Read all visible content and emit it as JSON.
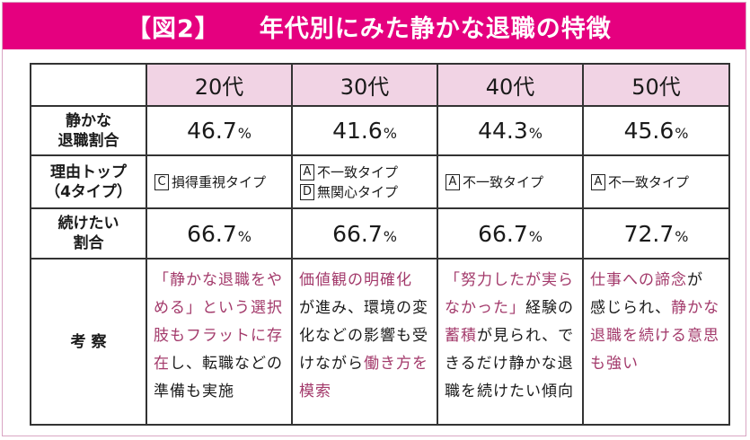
{
  "title": {
    "figure_label": "【図2】",
    "text": "年代別にみた静かな退職の特徴"
  },
  "colors": {
    "title_bg": "#e5007f",
    "header_bg": "#f1d3e4",
    "highlight_text": "#a33a6b"
  },
  "table": {
    "columns": [
      "20代",
      "30代",
      "40代",
      "50代"
    ],
    "rows": {
      "rate": {
        "label_line1": "静かな",
        "label_line2": "退職割合",
        "values": [
          "46.7",
          "41.6",
          "44.3",
          "45.6"
        ],
        "unit": "%"
      },
      "reason": {
        "label_line1": "理由トップ",
        "label_line2": "（4タイプ）",
        "cells": [
          [
            {
              "badge": "C",
              "text": "損得重視タイプ"
            }
          ],
          [
            {
              "badge": "A",
              "text": "不一致タイプ"
            },
            {
              "badge": "D",
              "text": "無関心タイプ"
            }
          ],
          [
            {
              "badge": "A",
              "text": "不一致タイプ"
            }
          ],
          [
            {
              "badge": "A",
              "text": "不一致タイプ"
            }
          ]
        ]
      },
      "continue": {
        "label_line1": "続けたい",
        "label_line2": "割合",
        "values": [
          "66.7",
          "66.7",
          "66.7",
          "72.7"
        ],
        "unit": "%"
      },
      "consideration": {
        "label": "考 察",
        "texts": [
          {
            "l1": "「静かな退職をや",
            "l2": "める」という選択",
            "l3": "肢もフラットに存",
            "l4a": "在",
            "l4b": "し、転職などの",
            "l5": "準備も実施"
          },
          {
            "l1": "価値観の明確化",
            "l2": "が進み、環境の変",
            "l3": "化などの影響も受",
            "l4a": "けながら",
            "l4b": "働き方を",
            "l5": "模索"
          },
          {
            "l1": "「努力したが実ら",
            "l2a": "なかった」",
            "l2b": "経験の",
            "l3a": "蓄積",
            "l3b": "が見られ、で",
            "l4": "きるだけ静かな退",
            "l5": "職を続けたい傾向"
          },
          {
            "l1a": "仕事への諦念",
            "l1b": "が",
            "l2a": "感じられ、",
            "l2b": "静かな",
            "l3": "退職を続ける意思",
            "l4": "も強い"
          }
        ]
      }
    }
  }
}
